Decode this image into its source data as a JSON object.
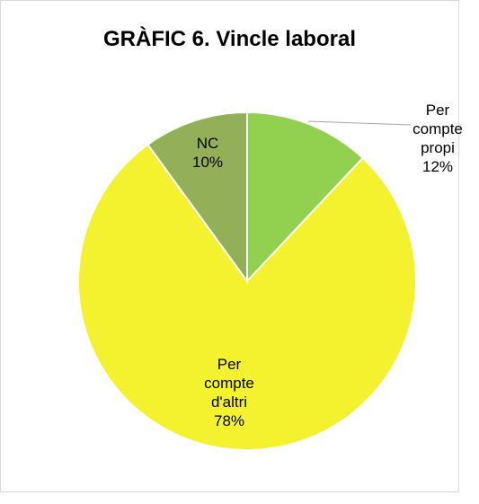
{
  "chart_data": {
    "type": "pie",
    "title": "GRÀFIC 6. Vincle laboral",
    "categories": [
      "Per compte propi",
      "Per compte d'altri",
      "NC"
    ],
    "values": [
      12,
      78,
      10
    ],
    "value_labels": [
      "12%",
      "78%",
      "10%"
    ],
    "colors": [
      "#92d050",
      "#f4f22e",
      "#93b058"
    ]
  }
}
